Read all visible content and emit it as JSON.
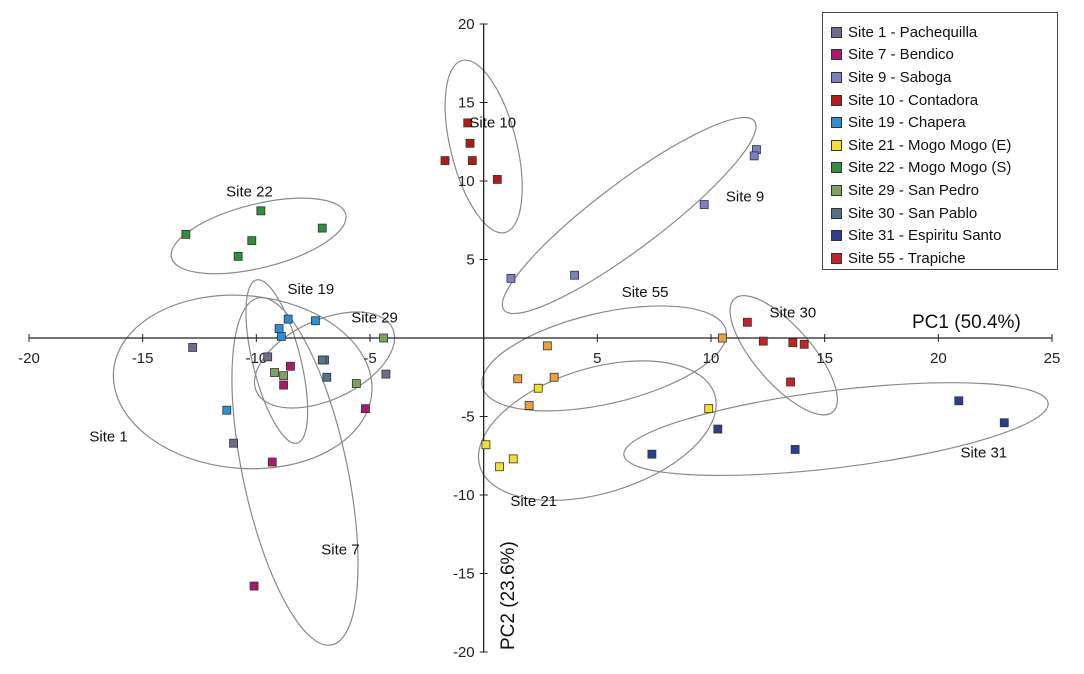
{
  "chart_data": {
    "type": "scatter",
    "x_axis": {
      "label": "PC1 (50.4%)",
      "min": -20,
      "max": 25,
      "ticks": [
        "-20",
        "-15",
        "-10",
        "-5",
        "5",
        "10",
        "15",
        "20",
        "25"
      ]
    },
    "y_axis": {
      "label": "PC2 (23.6%)",
      "min": -20,
      "max": 20,
      "ticks": [
        "20",
        "15",
        "10",
        "5",
        "-5",
        "-10",
        "-15",
        "-20"
      ]
    },
    "legend_position": "top-right",
    "series": [
      {
        "name": "Site 1 - Pachequilla",
        "color": "#6c6f8c",
        "points": [
          [
            -12.8,
            -0.6
          ],
          [
            -9.5,
            -1.2
          ],
          [
            -11,
            -6.7
          ],
          [
            -7,
            -1.4
          ],
          [
            -4.3,
            -2.3
          ]
        ]
      },
      {
        "name": "Site 7 - Bendico",
        "color": "#b0176a",
        "points": [
          [
            -8.5,
            -1.8
          ],
          [
            -8.8,
            -3
          ],
          [
            -5.2,
            -4.5
          ],
          [
            -9.3,
            -7.9
          ],
          [
            -10.1,
            -15.8
          ]
        ]
      },
      {
        "name": "Site 9 - Saboga",
        "color": "#7b7fc6",
        "points": [
          [
            12,
            12
          ],
          [
            11.9,
            11.6
          ],
          [
            9.7,
            8.5
          ],
          [
            4,
            4
          ],
          [
            1.2,
            3.8
          ]
        ]
      },
      {
        "name": "Site 10 - Contadora",
        "color": "#b5191c",
        "points": [
          [
            -0.7,
            13.7
          ],
          [
            -0.6,
            12.4
          ],
          [
            -0.5,
            11.3
          ],
          [
            -1.7,
            11.3
          ],
          [
            0.6,
            10.1
          ]
        ]
      },
      {
        "name": "Site 19 - Chapera",
        "color": "#2b8fd6",
        "points": [
          [
            -8.6,
            1.2
          ],
          [
            -9,
            0.6
          ],
          [
            -8.9,
            0.1
          ],
          [
            -7.4,
            1.1
          ],
          [
            -11.3,
            -4.6
          ]
        ]
      },
      {
        "name": "Site 21 - Mogo Mogo (E)",
        "color": "#f0e22a",
        "points": [
          [
            0.1,
            -6.8
          ],
          [
            0.7,
            -8.2
          ],
          [
            1.3,
            -7.7
          ],
          [
            2.4,
            -3.2
          ],
          [
            9.9,
            -4.5
          ]
        ]
      },
      {
        "name": "Site 22 - Mogo Mogo (S)",
        "color": "#2f8f3d",
        "points": [
          [
            -13.1,
            6.6
          ],
          [
            -9.8,
            8.1
          ],
          [
            -7.1,
            7
          ],
          [
            -10.2,
            6.2
          ],
          [
            -10.8,
            5.2
          ]
        ]
      },
      {
        "name": "Site 29 - San Pedro",
        "color": "#7ea25c",
        "points": [
          [
            -9.2,
            -2.2
          ],
          [
            -8.8,
            -2.4
          ],
          [
            -5.6,
            -2.9
          ],
          [
            -4.4,
            0
          ]
        ]
      },
      {
        "name": "Site 30 - San Pablo",
        "color": "#557483",
        "points": [
          [
            -7.1,
            -1.4
          ],
          [
            -6.9,
            -2.5
          ]
        ]
      },
      {
        "name": "Site 31 - Espiritu Santo",
        "color": "#2b3f91",
        "points": [
          [
            7.4,
            -7.4
          ],
          [
            10.3,
            -5.8
          ],
          [
            13.7,
            -7.1
          ],
          [
            20.9,
            -4
          ],
          [
            22.9,
            -5.4
          ]
        ]
      },
      {
        "name": "Site 55 - Trapiche",
        "color": "#c32427",
        "points": [
          [
            11.6,
            1
          ],
          [
            12.3,
            -0.2
          ],
          [
            13.6,
            -0.3
          ],
          [
            14.1,
            -0.4
          ],
          [
            13.5,
            -2.8
          ]
        ]
      }
    ],
    "orange_points": [
      [
        2.8,
        -0.5
      ],
      [
        10.5,
        0
      ],
      [
        1.5,
        -2.6
      ],
      [
        3.1,
        -2.5
      ],
      [
        2,
        -4.3
      ]
    ],
    "annotations": [
      {
        "text": "Site 10",
        "x": 0.4,
        "y": 13.4
      },
      {
        "text": "Site 22",
        "x": -10.3,
        "y": 9.0
      },
      {
        "text": "Site 9",
        "x": 11.5,
        "y": 8.7
      },
      {
        "text": "Site 19",
        "x": -7.6,
        "y": 2.8
      },
      {
        "text": "Site 29",
        "x": -4.8,
        "y": 1.0
      },
      {
        "text": "Site 55",
        "x": 7.1,
        "y": 2.6
      },
      {
        "text": "Site 30",
        "x": 13.6,
        "y": 1.3
      },
      {
        "text": "Site 1",
        "x": -16.5,
        "y": -6.6
      },
      {
        "text": "Site 31",
        "x": 22.0,
        "y": -7.6
      },
      {
        "text": "Site 21",
        "x": 2.2,
        "y": -10.7
      },
      {
        "text": "Site 7",
        "x": -6.3,
        "y": -13.8
      }
    ],
    "ellipses": [
      {
        "cx": 0.0,
        "cy": 12.2,
        "rx": 3.9,
        "ry": 1.45,
        "angle": -76
      },
      {
        "cx": -9.9,
        "cy": 6.5,
        "rx": 3.95,
        "ry": 1.4,
        "angle": 14
      },
      {
        "cx": 6.4,
        "cy": 7.8,
        "rx": 6.9,
        "ry": 1.45,
        "angle": 37
      },
      {
        "cx": -9.1,
        "cy": -1.5,
        "rx": 3.7,
        "ry": 1.05,
        "angle": -76
      },
      {
        "cx": -7.0,
        "cy": -1.4,
        "rx": 3.3,
        "ry": 1.75,
        "angle": 25
      },
      {
        "cx": -10.6,
        "cy": -2.8,
        "rx": 5.7,
        "ry": 3.8,
        "angle": -5
      },
      {
        "cx": -8.3,
        "cy": -8.5,
        "rx": 7.8,
        "ry": 2.3,
        "angle": -78
      },
      {
        "cx": 5.3,
        "cy": -1.3,
        "rx": 5.5,
        "ry": 2.0,
        "angle": 13
      },
      {
        "cx": 13.2,
        "cy": -1.1,
        "rx": 3.3,
        "ry": 1.25,
        "angle": -49
      },
      {
        "cx": 5.0,
        "cy": -5.9,
        "rx": 5.4,
        "ry": 2.75,
        "angle": 17
      },
      {
        "cx": 15.5,
        "cy": -5.8,
        "rx": 9.4,
        "ry": 1.7,
        "angle": 7
      }
    ]
  }
}
